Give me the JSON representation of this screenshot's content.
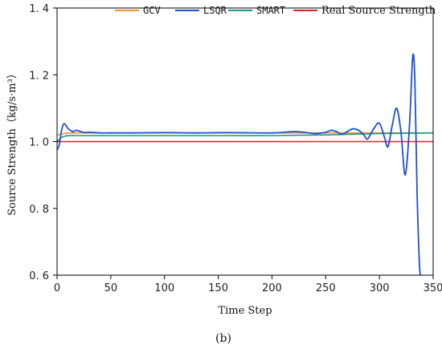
{
  "chart_data": {
    "type": "line",
    "xlabel": "Time Step",
    "ylabel": "Source Strength（kg/s·m³）",
    "xlim": [
      0,
      350
    ],
    "ylim": [
      0.6,
      1.4
    ],
    "xticks": [
      0,
      50,
      100,
      150,
      200,
      250,
      300,
      350
    ],
    "yticks": [
      0.6,
      0.8,
      1.0,
      1.2,
      1.4
    ],
    "ytick_labels": [
      "0. 6",
      "0. 8",
      "1. 0",
      "1. 2",
      "1. 4"
    ],
    "grid": false,
    "legend_position": "top",
    "series": [
      {
        "name": "GCV",
        "color": "#f0922e",
        "x": [
          0,
          3,
          8,
          20,
          50,
          100,
          150,
          200,
          250,
          300,
          350
        ],
        "y": [
          1.02,
          1.022,
          1.025,
          1.026,
          1.026,
          1.026,
          1.026,
          1.026,
          1.026,
          1.026,
          1.026
        ]
      },
      {
        "name": "LSQR",
        "color": "#1f4fd6",
        "x": [
          0,
          2,
          4,
          6,
          8,
          10,
          12,
          15,
          18,
          22,
          26,
          30,
          40,
          50,
          70,
          100,
          130,
          160,
          200,
          220,
          230,
          240,
          250,
          255,
          260,
          265,
          270,
          275,
          280,
          285,
          288,
          290,
          295,
          300,
          305,
          308,
          312,
          316,
          320,
          324,
          328,
          331,
          333,
          335,
          337,
          338
        ],
        "y": [
          0.975,
          0.99,
          1.03,
          1.052,
          1.05,
          1.04,
          1.035,
          1.03,
          1.034,
          1.03,
          1.027,
          1.028,
          1.026,
          1.026,
          1.026,
          1.027,
          1.026,
          1.027,
          1.026,
          1.03,
          1.028,
          1.024,
          1.028,
          1.034,
          1.03,
          1.022,
          1.03,
          1.038,
          1.035,
          1.022,
          1.008,
          1.012,
          1.04,
          1.055,
          1.01,
          0.985,
          1.05,
          1.1,
          1.03,
          0.9,
          1.05,
          1.255,
          1.18,
          0.85,
          0.65,
          0.6
        ]
      },
      {
        "name": "SMART",
        "color": "#1a9a83",
        "x": [
          0,
          4,
          8,
          12,
          20,
          50,
          100,
          150,
          200,
          250,
          300,
          350
        ],
        "y": [
          1.0,
          1.012,
          1.017,
          1.018,
          1.018,
          1.018,
          1.018,
          1.018,
          1.018,
          1.02,
          1.024,
          1.026
        ]
      },
      {
        "name": "Real Source Strength",
        "color": "#e0202a",
        "x": [
          0,
          350
        ],
        "y": [
          1.0,
          1.0
        ]
      }
    ]
  },
  "caption": "(b)"
}
